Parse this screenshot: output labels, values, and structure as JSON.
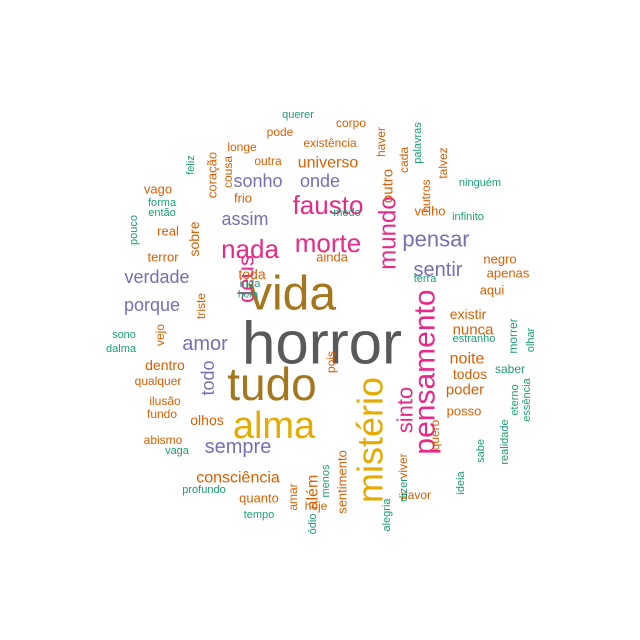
{
  "colors": {
    "gray": "#595959",
    "brown": "#A6761D",
    "gold": "#E6AB02",
    "magenta": "#E7298A",
    "purple": "#7570B3",
    "orange": "#D95F02",
    "teal": "#1B9E77"
  },
  "words": [
    {
      "text": "horror",
      "color": "gray"
    },
    {
      "text": "vida",
      "color": "brown"
    },
    {
      "text": "tudo",
      "color": "brown"
    },
    {
      "text": "alma",
      "color": "gold"
    },
    {
      "text": "mistério",
      "color": "gold"
    },
    {
      "text": "pensamento",
      "color": "magenta"
    },
    {
      "text": "morte",
      "color": "magenta"
    },
    {
      "text": "nada",
      "color": "magenta"
    },
    {
      "text": "fausto",
      "color": "magenta"
    },
    {
      "text": "mundo",
      "color": "magenta"
    },
    {
      "text": "sinto",
      "color": "magenta"
    },
    {
      "text": "deus",
      "color": "magenta"
    },
    {
      "text": "pensar",
      "color": "purple"
    },
    {
      "text": "sentir",
      "color": "purple"
    },
    {
      "text": "sempre",
      "color": "purple"
    },
    {
      "text": "amor",
      "color": "purple"
    },
    {
      "text": "porque",
      "color": "purple"
    },
    {
      "text": "verdade",
      "color": "purple"
    },
    {
      "text": "assim",
      "color": "purple"
    },
    {
      "text": "sonho",
      "color": "purple"
    },
    {
      "text": "onde",
      "color": "purple"
    },
    {
      "text": "todo",
      "color": "purple"
    },
    {
      "text": "universo",
      "color": "orange"
    },
    {
      "text": "consciência",
      "color": "orange"
    },
    {
      "text": "noite",
      "color": "orange"
    },
    {
      "text": "nunca",
      "color": "orange"
    },
    {
      "text": "poder",
      "color": "orange"
    },
    {
      "text": "todos",
      "color": "orange"
    },
    {
      "text": "existir",
      "color": "orange"
    },
    {
      "text": "além",
      "color": "orange"
    },
    {
      "text": "sobre",
      "color": "orange"
    },
    {
      "text": "toda",
      "color": "orange"
    },
    {
      "text": "olhos",
      "color": "orange"
    },
    {
      "text": "dentro",
      "color": "orange"
    },
    {
      "text": "ainda",
      "color": "orange"
    },
    {
      "text": "outro",
      "color": "orange"
    },
    {
      "text": "sentimento",
      "color": "orange"
    },
    {
      "text": "quanto",
      "color": "orange"
    },
    {
      "text": "posso",
      "color": "orange"
    },
    {
      "text": "aqui",
      "color": "orange"
    },
    {
      "text": "apenas",
      "color": "orange"
    },
    {
      "text": "negro",
      "color": "orange"
    },
    {
      "text": "velho",
      "color": "orange"
    },
    {
      "text": "terror",
      "color": "orange"
    },
    {
      "text": "real",
      "color": "orange"
    },
    {
      "text": "vago",
      "color": "orange"
    },
    {
      "text": "coração",
      "color": "orange"
    },
    {
      "text": "frio",
      "color": "orange"
    },
    {
      "text": "outra",
      "color": "orange"
    },
    {
      "text": "longe",
      "color": "orange"
    },
    {
      "text": "pode",
      "color": "orange"
    },
    {
      "text": "existência",
      "color": "orange"
    },
    {
      "text": "corpo",
      "color": "orange"
    },
    {
      "text": "haver",
      "color": "orange"
    },
    {
      "text": "cada",
      "color": "orange"
    },
    {
      "text": "talvez",
      "color": "orange"
    },
    {
      "text": "outros",
      "color": "orange"
    },
    {
      "text": "qualquer",
      "color": "orange"
    },
    {
      "text": "ilusão",
      "color": "orange"
    },
    {
      "text": "fundo",
      "color": "orange"
    },
    {
      "text": "abismo",
      "color": "orange"
    },
    {
      "text": "vejo",
      "color": "orange"
    },
    {
      "text": "hoje",
      "color": "orange"
    },
    {
      "text": "amar",
      "color": "orange"
    },
    {
      "text": "pavor",
      "color": "orange"
    },
    {
      "text": "viver",
      "color": "orange"
    },
    {
      "text": "quero",
      "color": "orange"
    },
    {
      "text": "triste",
      "color": "orange"
    },
    {
      "text": "pois",
      "color": "orange"
    },
    {
      "text": "cousa",
      "color": "orange"
    },
    {
      "text": "morrer",
      "color": "teal"
    },
    {
      "text": "saber",
      "color": "teal"
    },
    {
      "text": "eterno",
      "color": "teal"
    },
    {
      "text": "essência",
      "color": "teal"
    },
    {
      "text": "realidade",
      "color": "teal"
    },
    {
      "text": "sabe",
      "color": "teal"
    },
    {
      "text": "ideia",
      "color": "teal"
    },
    {
      "text": "dizer",
      "color": "teal"
    },
    {
      "text": "alegria",
      "color": "teal"
    },
    {
      "text": "ódio",
      "color": "teal"
    },
    {
      "text": "tempo",
      "color": "teal"
    },
    {
      "text": "profundo",
      "color": "teal"
    },
    {
      "text": "vaga",
      "color": "teal"
    },
    {
      "text": "dalma",
      "color": "teal"
    },
    {
      "text": "sono",
      "color": "teal"
    },
    {
      "text": "pouco",
      "color": "teal"
    },
    {
      "text": "forma",
      "color": "teal"
    },
    {
      "text": "então",
      "color": "teal"
    },
    {
      "text": "feliz",
      "color": "teal"
    },
    {
      "text": "querer",
      "color": "teal"
    },
    {
      "text": "palavras",
      "color": "teal"
    },
    {
      "text": "ninguém",
      "color": "teal"
    },
    {
      "text": "infinito",
      "color": "teal"
    },
    {
      "text": "medo",
      "color": "teal"
    },
    {
      "text": "terra",
      "color": "teal"
    },
    {
      "text": "estranho",
      "color": "teal"
    },
    {
      "text": "olhar",
      "color": "teal"
    },
    {
      "text": "inda",
      "color": "teal"
    },
    {
      "text": "hora",
      "color": "teal"
    },
    {
      "text": "menos",
      "color": "teal"
    }
  ]
}
